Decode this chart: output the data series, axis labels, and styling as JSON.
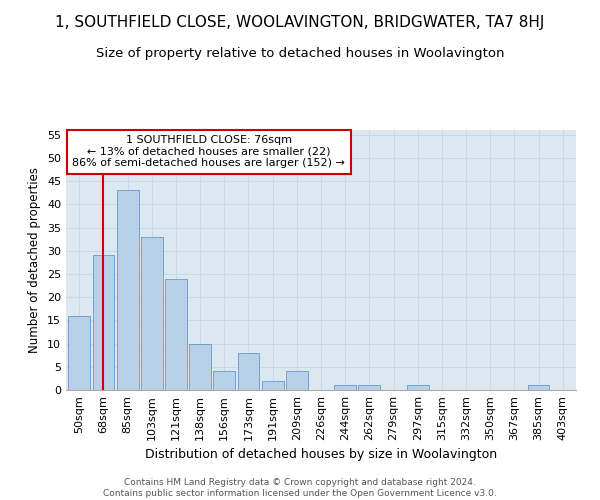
{
  "title": "1, SOUTHFIELD CLOSE, WOOLAVINGTON, BRIDGWATER, TA7 8HJ",
  "subtitle": "Size of property relative to detached houses in Woolavington",
  "xlabel": "Distribution of detached houses by size in Woolavington",
  "ylabel": "Number of detached properties",
  "footer_line1": "Contains HM Land Registry data © Crown copyright and database right 2024.",
  "footer_line2": "Contains public sector information licensed under the Open Government Licence v3.0.",
  "bar_labels": [
    "50sqm",
    "68sqm",
    "85sqm",
    "103sqm",
    "121sqm",
    "138sqm",
    "156sqm",
    "173sqm",
    "191sqm",
    "209sqm",
    "226sqm",
    "244sqm",
    "262sqm",
    "279sqm",
    "297sqm",
    "315sqm",
    "332sqm",
    "350sqm",
    "367sqm",
    "385sqm",
    "403sqm"
  ],
  "bar_values": [
    16,
    29,
    43,
    33,
    24,
    10,
    4,
    8,
    2,
    4,
    0,
    1,
    1,
    0,
    1,
    0,
    0,
    0,
    0,
    1,
    0
  ],
  "bar_color": "#b8d0e8",
  "bar_edgecolor": "#6699cc",
  "grid_color": "#c8d8ea",
  "background_color": "#dce8f0",
  "vline_x": 1,
  "vline_color": "#cc0000",
  "annotation_text": "1 SOUTHFIELD CLOSE: 76sqm\n← 13% of detached houses are smaller (22)\n86% of semi-detached houses are larger (152) →",
  "annotation_box_facecolor": "#ffffff",
  "annotation_box_edgecolor": "#cc0000",
  "ylim": [
    0,
    56
  ],
  "yticks": [
    0,
    5,
    10,
    15,
    20,
    25,
    30,
    35,
    40,
    45,
    50,
    55
  ],
  "title_fontsize": 11,
  "subtitle_fontsize": 9.5,
  "xlabel_fontsize": 9,
  "ylabel_fontsize": 8.5,
  "tick_fontsize": 8,
  "footer_fontsize": 6.5
}
